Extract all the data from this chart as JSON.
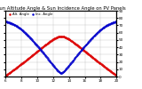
{
  "title": "Sun Altitude Angle & Sun Incidence Angle on PV Panels",
  "legend_altitude": "Alt. Angle",
  "legend_incidence": "Inc. Angle",
  "x_start": 6,
  "x_end": 20,
  "num_points": 300,
  "altitude_peak": 55,
  "panel_tilt": 30,
  "ylim": [
    0,
    90
  ],
  "color_altitude": "#dd0000",
  "color_incidence": "#0000cc",
  "background_color": "#ffffff",
  "grid_color": "#aaaaaa",
  "title_fontsize": 3.8,
  "tick_fontsize": 3.0,
  "legend_fontsize": 2.8,
  "yticks": [
    0,
    10,
    20,
    30,
    40,
    50,
    60,
    70,
    80,
    90
  ],
  "xticks": [
    6,
    8,
    10,
    12,
    14,
    16,
    18,
    20
  ],
  "markersize": 0.8
}
